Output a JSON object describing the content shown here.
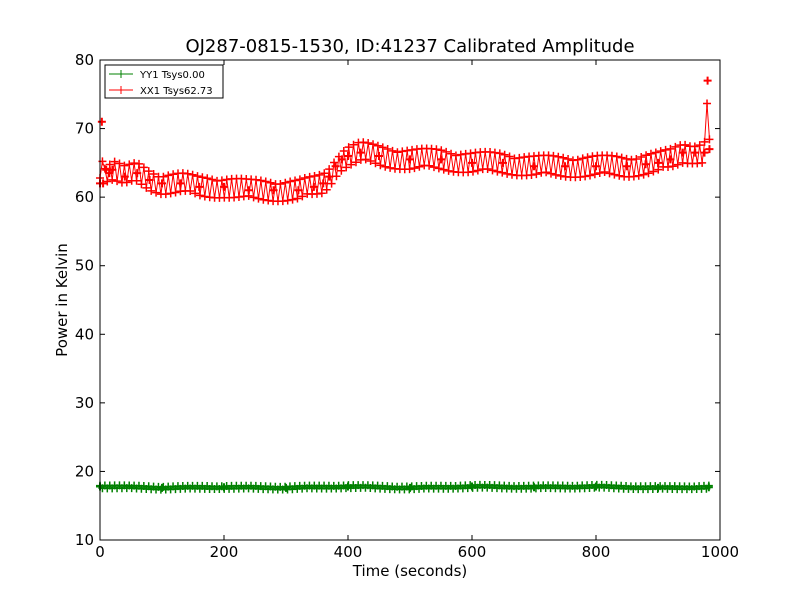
{
  "chart_data": {
    "type": "line",
    "title": "OJ287-0815-1530, ID:41237 Calibrated Amplitude",
    "xlabel": "Time (seconds)",
    "ylabel": "Power in Kelvin",
    "xlim": [
      0,
      1000
    ],
    "ylim": [
      10,
      80
    ],
    "xticks": [
      0,
      200,
      400,
      600,
      800,
      1000
    ],
    "yticks": [
      10,
      20,
      30,
      40,
      50,
      60,
      70,
      80
    ],
    "xtick_labels": [
      "0",
      "200",
      "400",
      "600",
      "800",
      "1000"
    ],
    "ytick_labels": [
      "10",
      "20",
      "30",
      "40",
      "50",
      "60",
      "70",
      "80"
    ],
    "grid": false,
    "legend_position": "top-left",
    "series": [
      {
        "name": "YY1 Tsys0.00",
        "color": "#008000",
        "marker": "plus",
        "x": [
          0,
          100,
          200,
          300,
          400,
          500,
          600,
          700,
          800,
          900,
          982
        ],
        "y": [
          17.8,
          17.6,
          17.7,
          17.6,
          17.8,
          17.6,
          17.8,
          17.7,
          17.8,
          17.6,
          17.7
        ]
      },
      {
        "name": "XX1 Tsys62.73",
        "color": "#ff0000",
        "marker": "plus",
        "x": [
          0,
          3,
          5,
          10,
          15,
          20,
          40,
          60,
          80,
          100,
          130,
          160,
          200,
          240,
          280,
          320,
          345,
          360,
          370,
          380,
          390,
          400,
          420,
          450,
          500,
          550,
          600,
          650,
          700,
          750,
          800,
          850,
          880,
          900,
          920,
          940,
          960,
          975,
          980,
          983
        ],
        "y": [
          62.0,
          71.0,
          62.0,
          64.0,
          63.5,
          64.0,
          63.0,
          63.5,
          62.5,
          62.0,
          62.0,
          61.5,
          61.5,
          61.0,
          61.0,
          61.0,
          61.5,
          62.0,
          63.0,
          64.5,
          65.5,
          66.0,
          66.5,
          66.0,
          65.5,
          65.5,
          65.0,
          65.0,
          64.5,
          64.5,
          64.5,
          64.5,
          64.8,
          65.0,
          65.5,
          66.5,
          66.5,
          66.5,
          77.0,
          67.0
        ]
      }
    ]
  }
}
